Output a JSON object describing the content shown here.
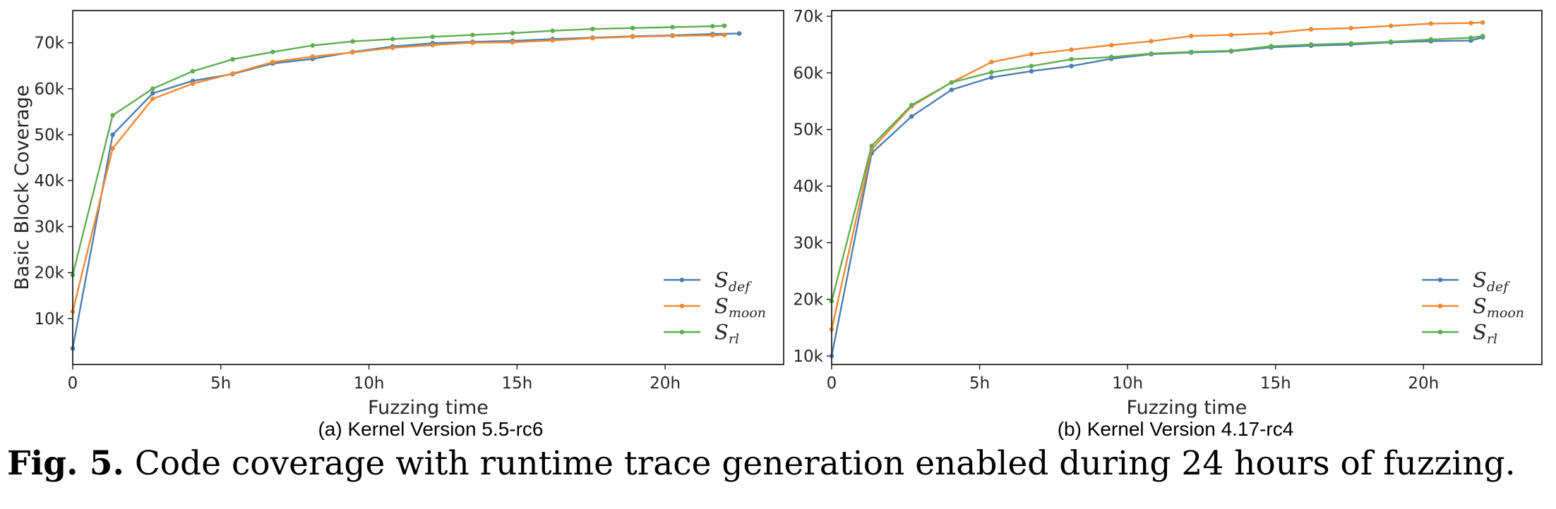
{
  "caption": {
    "label": "Fig. 5.",
    "text": "Code coverage with runtime trace generation enabled during 24 hours of fuzzing."
  },
  "legend": [
    {
      "base": "S",
      "sub": "def",
      "color": "#4c7fb0"
    },
    {
      "base": "S",
      "sub": "moon",
      "color": "#f08a33"
    },
    {
      "base": "S",
      "sub": "rl",
      "color": "#5fae52"
    }
  ],
  "chart_data": [
    {
      "type": "line",
      "subcaption": "(a) Kernel Version 5.5-rc6",
      "xlabel": "Fuzzing time",
      "ylabel": "Basic Block Coverage",
      "xlim": [
        0,
        24
      ],
      "ylim": [
        0,
        77000
      ],
      "x_ticks": [
        0,
        5,
        10,
        15,
        20
      ],
      "x_tick_labels": [
        "0",
        "5h",
        "10h",
        "15h",
        "20h"
      ],
      "y_ticks": [
        10000,
        20000,
        30000,
        40000,
        50000,
        60000,
        70000
      ],
      "y_tick_labels": [
        "10k",
        "20k",
        "30k",
        "40k",
        "50k",
        "60k",
        "70k"
      ],
      "legend_position": "lower-right",
      "series": [
        {
          "name": "S_def",
          "color": "#4c7fb0",
          "x": [
            0,
            1.35,
            2.7,
            4.05,
            5.4,
            6.75,
            8.1,
            9.45,
            10.8,
            12.15,
            13.5,
            14.85,
            16.2,
            17.55,
            18.9,
            20.25,
            21.6,
            22.5
          ],
          "y": [
            3500,
            50000,
            59000,
            61700,
            63200,
            65500,
            66500,
            68000,
            69200,
            69900,
            70200,
            70400,
            70800,
            71100,
            71400,
            71600,
            71900,
            72000
          ]
        },
        {
          "name": "S_moon",
          "color": "#f08a33",
          "x": [
            0,
            1.35,
            2.7,
            4.05,
            5.4,
            6.75,
            8.1,
            9.45,
            10.8,
            12.15,
            13.5,
            14.85,
            16.2,
            17.55,
            18.9,
            20.25,
            21.6,
            22.0
          ],
          "y": [
            11500,
            47000,
            57800,
            61100,
            63300,
            65800,
            67000,
            67900,
            68900,
            69500,
            70000,
            70100,
            70500,
            71000,
            71300,
            71500,
            71600,
            71700
          ]
        },
        {
          "name": "S_rl",
          "color": "#5fae52",
          "x": [
            0,
            1.35,
            2.7,
            4.05,
            5.4,
            6.75,
            8.1,
            9.45,
            10.8,
            12.15,
            13.5,
            14.85,
            16.2,
            17.55,
            18.9,
            20.25,
            21.6,
            22.0
          ],
          "y": [
            19500,
            54200,
            60000,
            63800,
            66400,
            68000,
            69400,
            70300,
            70800,
            71300,
            71700,
            72100,
            72600,
            73000,
            73200,
            73400,
            73600,
            73700
          ]
        }
      ]
    },
    {
      "type": "line",
      "subcaption": "(b) Kernel Version 4.17-rc4",
      "xlabel": "Fuzzing time",
      "ylabel": "",
      "xlim": [
        0,
        24
      ],
      "ylim": [
        8500,
        71000
      ],
      "x_ticks": [
        0,
        5,
        10,
        15,
        20
      ],
      "x_tick_labels": [
        "0",
        "5h",
        "10h",
        "15h",
        "20h"
      ],
      "y_ticks": [
        10000,
        20000,
        30000,
        40000,
        50000,
        60000,
        70000
      ],
      "y_tick_labels": [
        "10k",
        "20k",
        "30k",
        "40k",
        "50k",
        "60k",
        "70k"
      ],
      "legend_position": "lower-right",
      "series": [
        {
          "name": "S_def",
          "color": "#4c7fb0",
          "x": [
            0,
            1.35,
            2.7,
            4.05,
            5.4,
            6.75,
            8.1,
            9.45,
            10.8,
            12.15,
            13.5,
            14.85,
            16.2,
            17.55,
            18.9,
            20.25,
            21.6,
            22.0
          ],
          "y": [
            10000,
            45800,
            52300,
            57000,
            59200,
            60300,
            61200,
            62500,
            63300,
            63600,
            63800,
            64500,
            64800,
            65000,
            65400,
            65600,
            65700,
            66300
          ]
        },
        {
          "name": "S_moon",
          "color": "#f08a33",
          "x": [
            0,
            1.35,
            2.7,
            4.05,
            5.4,
            6.75,
            8.1,
            9.45,
            10.8,
            12.15,
            13.5,
            14.85,
            16.2,
            17.55,
            18.9,
            20.25,
            21.6,
            22.0
          ],
          "y": [
            14700,
            46500,
            54100,
            58300,
            61900,
            63300,
            64100,
            64900,
            65600,
            66500,
            66700,
            67000,
            67700,
            67900,
            68300,
            68700,
            68800,
            68900
          ]
        },
        {
          "name": "S_rl",
          "color": "#5fae52",
          "x": [
            0,
            1.35,
            2.7,
            4.05,
            5.4,
            6.75,
            8.1,
            9.45,
            10.8,
            12.15,
            13.5,
            14.85,
            16.2,
            17.55,
            18.9,
            20.25,
            21.6,
            22.0
          ],
          "y": [
            19700,
            47100,
            54300,
            58300,
            60100,
            61200,
            62400,
            62800,
            63400,
            63700,
            63900,
            64700,
            65000,
            65200,
            65500,
            65900,
            66200,
            66500
          ]
        }
      ]
    }
  ]
}
